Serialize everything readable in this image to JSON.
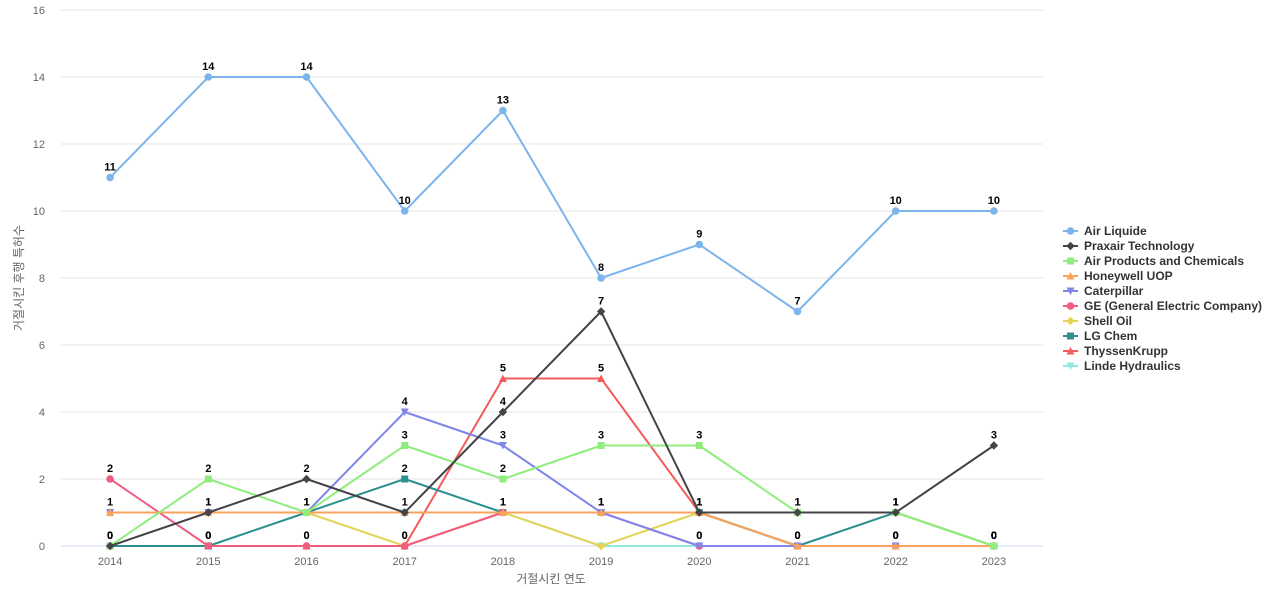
{
  "chart_data": {
    "type": "line",
    "xlabel": "거절시킨 연도",
    "ylabel": "거절시킨 후행 특허수",
    "ylim": [
      0,
      16
    ],
    "yticks": [
      0,
      2,
      4,
      6,
      8,
      10,
      12,
      14,
      16
    ],
    "grid": true,
    "legend_position": "right",
    "categories": [
      "2014",
      "2015",
      "2016",
      "2017",
      "2018",
      "2019",
      "2020",
      "2021",
      "2022",
      "2023"
    ],
    "series": [
      {
        "name": "Air Liquide",
        "color": "#7cb5ec",
        "marker": "circle",
        "values": [
          11,
          14,
          14,
          10,
          13,
          8,
          9,
          7,
          10,
          10
        ],
        "show_labels": true
      },
      {
        "name": "Praxair Technology",
        "color": "#434348",
        "marker": "diamond",
        "values": [
          0,
          1,
          2,
          1,
          4,
          7,
          1,
          1,
          1,
          3
        ],
        "show_labels": true
      },
      {
        "name": "Air Products and Chemicals",
        "color": "#90ed7d",
        "marker": "square",
        "values": [
          0,
          2,
          1,
          3,
          2,
          3,
          3,
          1,
          1,
          0
        ],
        "show_labels": true
      },
      {
        "name": "Honeywell UOP",
        "color": "#f7a35c",
        "marker": "triangle",
        "values": [
          1,
          1,
          1,
          1,
          1,
          1,
          1,
          0,
          0,
          0
        ],
        "show_labels": false
      },
      {
        "name": "Caterpillar",
        "color": "#8085e9",
        "marker": "triangle-down",
        "values": [
          1,
          1,
          1,
          4,
          3,
          1,
          0,
          0,
          0,
          0
        ],
        "show_labels": true
      },
      {
        "name": "GE (General Electric Company)",
        "color": "#f15c80",
        "marker": "circle",
        "values": [
          2,
          0,
          0,
          0,
          1,
          1,
          0,
          0,
          0,
          0
        ],
        "show_labels": true
      },
      {
        "name": "Shell Oil",
        "color": "#e4d354",
        "marker": "diamond",
        "values": [
          1,
          1,
          1,
          0,
          1,
          0,
          1,
          1,
          1,
          0
        ],
        "show_labels": false
      },
      {
        "name": "LG Chem",
        "color": "#2b908f",
        "marker": "square",
        "values": [
          0,
          0,
          1,
          2,
          1,
          1,
          1,
          0,
          1,
          0
        ],
        "show_labels": true
      },
      {
        "name": "ThyssenKrupp",
        "color": "#f45b5b",
        "marker": "triangle",
        "values": [
          0,
          0,
          0,
          0,
          5,
          5,
          1,
          0,
          0,
          0
        ],
        "show_labels": true
      },
      {
        "name": "Linde Hydraulics",
        "color": "#91e8e1",
        "marker": "triangle-down",
        "values": [
          1,
          1,
          1,
          1,
          1,
          0,
          0,
          0,
          0,
          0
        ],
        "show_labels": false
      }
    ]
  }
}
